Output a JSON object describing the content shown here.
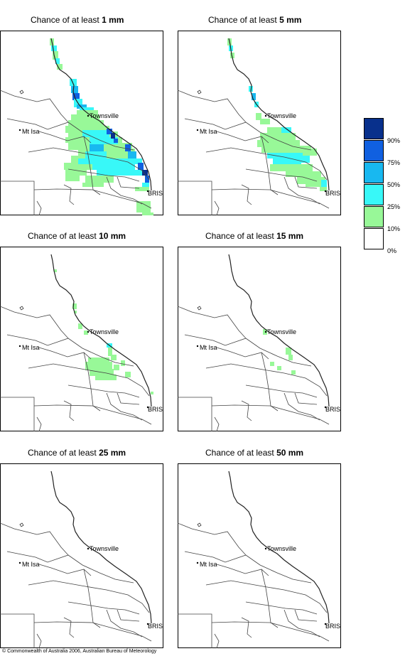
{
  "panels": [
    {
      "prefix": "Chance of at least",
      "amount": "1 mm",
      "level": 1
    },
    {
      "prefix": "Chance of at least",
      "amount": "5 mm",
      "level": 2
    },
    {
      "prefix": "Chance of at least",
      "amount": "10 mm",
      "level": 3
    },
    {
      "prefix": "Chance of at least",
      "amount": "15 mm",
      "level": 4
    },
    {
      "prefix": "Chance of at least",
      "amount": "25 mm",
      "level": 5
    },
    {
      "prefix": "Chance of at least",
      "amount": "50 mm",
      "level": 6
    }
  ],
  "places": {
    "townsville": "Townsville",
    "mt_isa": "Mt Isa",
    "bris": "BRIS"
  },
  "legend": {
    "colors": [
      "#08308c",
      "#1060e0",
      "#18b8f0",
      "#38f8f8",
      "#98f898",
      "#ffffff"
    ],
    "labels": [
      "90%",
      "75%",
      "50%",
      "25%",
      "10%",
      "0%"
    ]
  },
  "copyright": "© Commonwealth of Australia 2006, Australian Bureau of Meteorology"
}
